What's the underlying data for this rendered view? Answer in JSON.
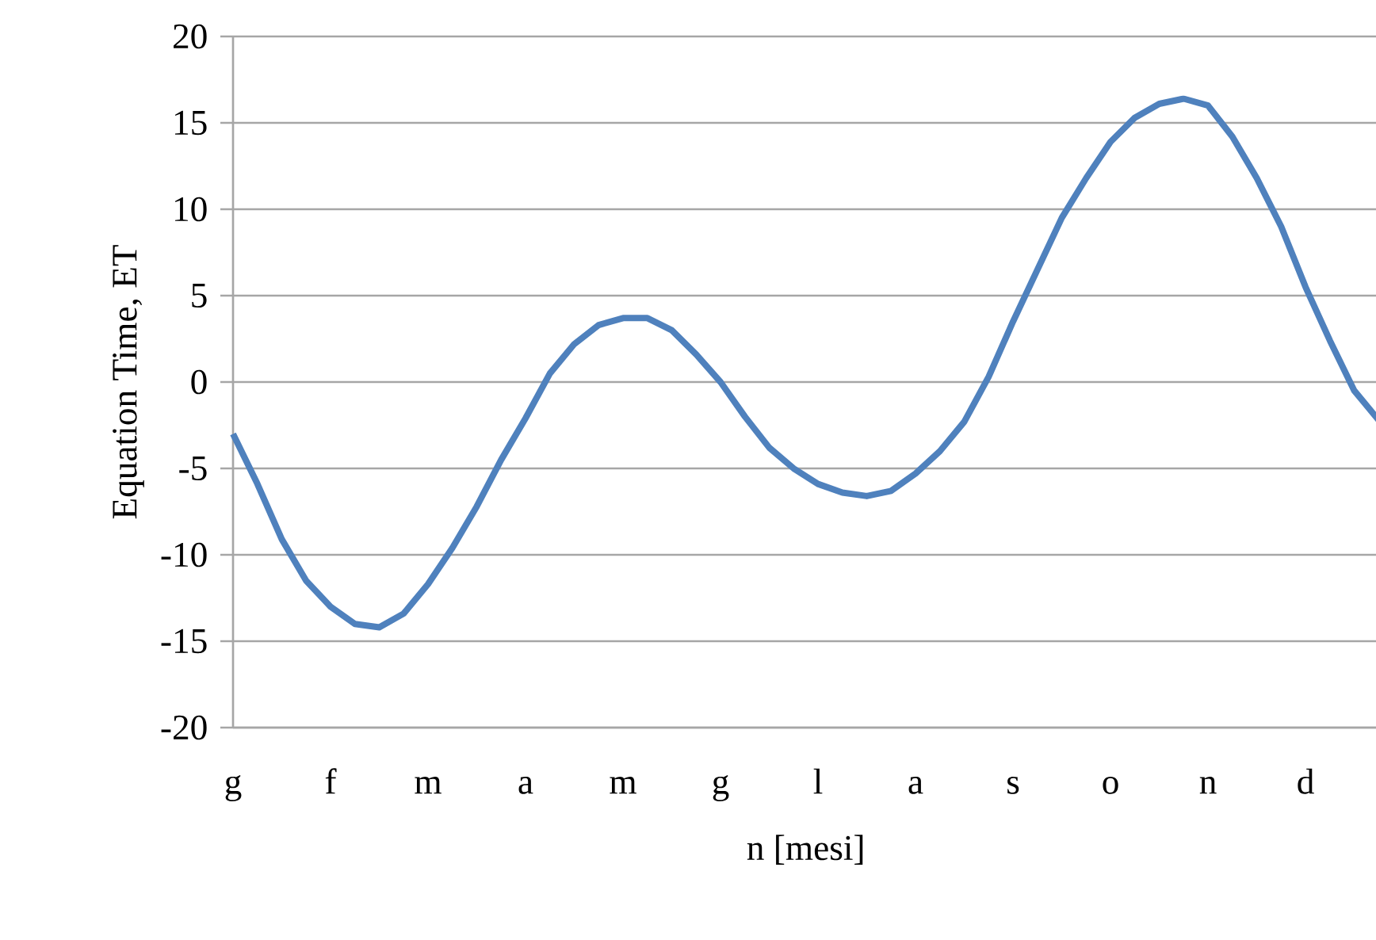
{
  "chart_data": {
    "type": "line",
    "xlabel": "n [mesi]",
    "ylabel": "Equation Time,  ET",
    "grid": "y",
    "ylim": [
      -20,
      20
    ],
    "yticks": [
      -20,
      -15,
      -10,
      -5,
      0,
      5,
      10,
      15,
      20
    ],
    "categories": [
      "g",
      null,
      null,
      null,
      "f",
      null,
      null,
      null,
      "m",
      null,
      null,
      null,
      "a",
      null,
      null,
      null,
      "m",
      null,
      null,
      null,
      "g",
      null,
      null,
      null,
      "l",
      null,
      null,
      null,
      "a",
      null,
      null,
      null,
      "s",
      null,
      null,
      null,
      "o",
      null,
      null,
      null,
      "n",
      null,
      null,
      null,
      "d",
      null,
      null,
      null
    ],
    "series": [
      {
        "color": "#4f81bd",
        "values": [
          -3,
          -5.9,
          -9.1,
          -11.5,
          -13,
          -14,
          -14.2,
          -13.4,
          -11.7,
          -9.6,
          -7.2,
          -4.5,
          -2.1,
          0.5,
          2.2,
          3.3,
          3.7,
          3.7,
          3,
          1.6,
          0,
          -2,
          -3.8,
          -5,
          -5.9,
          -6.4,
          -6.6,
          -6.3,
          -5.3,
          -4,
          -2.3,
          0.3,
          3.5,
          6.5,
          9.5,
          11.8,
          13.9,
          15.3,
          16.1,
          16.4,
          16,
          14.2,
          11.8,
          9,
          5.5,
          2.4,
          -0.5,
          -2.2
        ]
      }
    ]
  }
}
